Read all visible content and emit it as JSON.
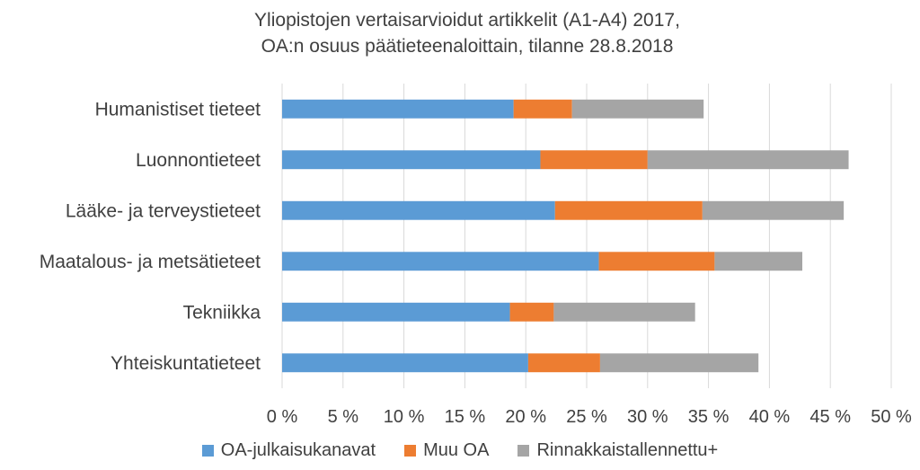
{
  "chart_data": {
    "type": "bar",
    "orientation": "horizontal",
    "stacked": true,
    "title": [
      "Yliopistojen vertaisarvioidut artikkelit (A1-A4) 2017,",
      "OA:n osuus päätieteenaloittain, tilanne 28.8.2018"
    ],
    "categories": [
      "Humanistiset tieteet",
      "Luonnontieteet",
      "Lääke- ja terveystieteet",
      "Maatalous- ja metsätieteet",
      "Tekniikka",
      "Yhteiskuntatieteet"
    ],
    "series": [
      {
        "name": "OA-julkaisukanavat",
        "color": "#5b9bd5",
        "values": [
          19.0,
          21.2,
          22.4,
          26.0,
          18.7,
          20.2
        ]
      },
      {
        "name": "Muu OA",
        "color": "#ed7d31",
        "values": [
          4.8,
          8.8,
          12.1,
          9.5,
          3.6,
          5.9
        ]
      },
      {
        "name": "Rinnakkaistallennettu+",
        "color": "#a5a5a5",
        "values": [
          10.8,
          16.5,
          11.6,
          7.2,
          11.6,
          13.0
        ]
      }
    ],
    "xlim": [
      0,
      50
    ],
    "xticks": [
      0,
      5,
      10,
      15,
      20,
      25,
      30,
      35,
      40,
      45,
      50
    ],
    "xtick_labels": [
      "0 %",
      "5 %",
      "10 %",
      "15 %",
      "20 %",
      "25 %",
      "30 %",
      "35 %",
      "40 %",
      "45 %",
      "50 %"
    ],
    "grid": true,
    "legend": "bottom"
  }
}
